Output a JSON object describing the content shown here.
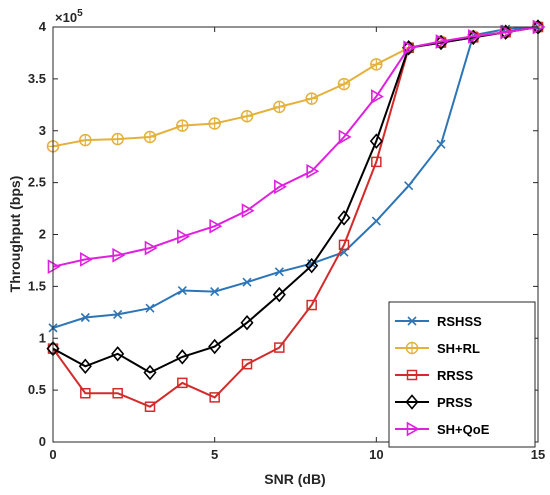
{
  "chart_data": {
    "type": "line",
    "xlabel": "SNR (dB)",
    "ylabel": "Throughput (bps)",
    "y_scale_label": "×10",
    "y_scale_exponent": "5",
    "xlim": [
      0,
      15
    ],
    "ylim": [
      0,
      400000
    ],
    "xticks": [
      "0",
      "5",
      "10",
      "15"
    ],
    "yticks": [
      "0",
      "0.5",
      "1",
      "1.5",
      "2",
      "2.5",
      "3",
      "3.5",
      "4"
    ],
    "x": [
      0,
      1,
      2,
      3,
      4,
      5,
      6,
      7,
      8,
      9,
      10,
      11,
      12,
      13,
      14,
      15
    ],
    "grid": false,
    "legend_position": "bottom-right",
    "series": [
      {
        "name": "RSHSS",
        "color": "#2E75B6",
        "marker": "x",
        "values": [
          110000,
          120000,
          123000,
          129000,
          146000,
          145000,
          154000,
          164000,
          172000,
          183000,
          213000,
          247000,
          287000,
          392000,
          398000,
          400000
        ]
      },
      {
        "name": "SH+RL",
        "color": "#E3B13C",
        "marker": "circle-plus",
        "values": [
          285000,
          291000,
          292000,
          294000,
          305000,
          307000,
          314000,
          323000,
          331000,
          345000,
          364000,
          380000,
          386000,
          391000,
          395000,
          400000
        ]
      },
      {
        "name": "RRSS",
        "color": "#D42A2A",
        "marker": "square",
        "values": [
          90000,
          47000,
          47000,
          34000,
          57000,
          43000,
          75000,
          91000,
          132000,
          190000,
          270000,
          380000,
          385000,
          390000,
          395000,
          400000
        ]
      },
      {
        "name": "PRSS",
        "color": "#000000",
        "marker": "diamond",
        "values": [
          90000,
          73000,
          85000,
          67000,
          82000,
          92000,
          115000,
          142000,
          170000,
          216000,
          290000,
          380000,
          385000,
          390000,
          395000,
          400000
        ]
      },
      {
        "name": "SH+QoE",
        "color": "#E020E0",
        "marker": "triangle-right",
        "values": [
          169000,
          176000,
          180000,
          187000,
          198000,
          208000,
          223000,
          246000,
          261000,
          294000,
          333000,
          380000,
          386000,
          391000,
          395000,
          400000
        ]
      }
    ]
  }
}
